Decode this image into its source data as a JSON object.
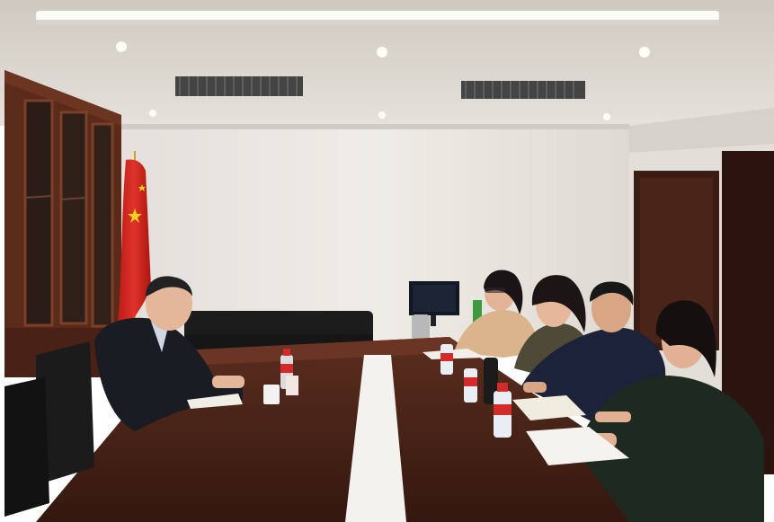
{
  "scene": {
    "flag_text": "",
    "caption": ""
  },
  "colors": {
    "ceiling": "#d9d4cc",
    "wall": "#ece9e4",
    "table": "#4a2519",
    "flag": "#d2261e",
    "flag_star": "#f4d31c",
    "cabinet": "#5a2a1a",
    "chair": "#1b1b1b",
    "white_runner": "#f4f2ee"
  }
}
